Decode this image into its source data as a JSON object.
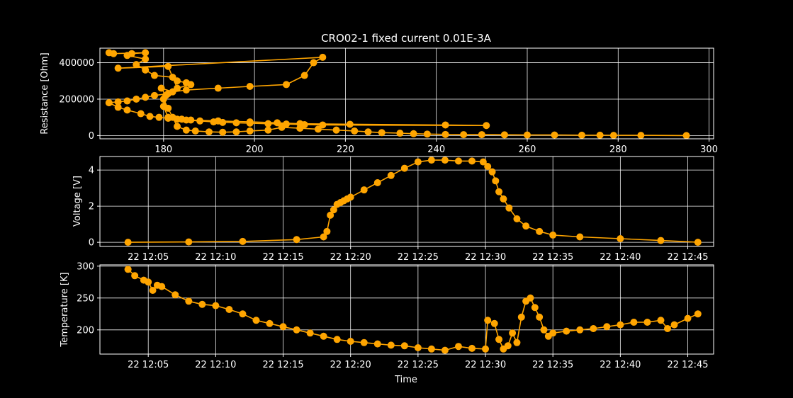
{
  "chart_data": [
    {
      "type": "line",
      "title": "CRO02-1 fixed current 0.01E-3A",
      "xlabel": "",
      "ylabel": "Resistance [Ohm]",
      "xlim": [
        166,
        301
      ],
      "ylim": [
        -18000,
        480000
      ],
      "xticks": [
        180,
        200,
        220,
        240,
        260,
        280,
        300
      ],
      "xtick_labels": [
        "180",
        "200",
        "220",
        "240",
        "260",
        "280",
        "300"
      ],
      "yticks": [
        0,
        200000,
        400000
      ],
      "ytick_labels": [
        "0",
        "200000",
        "400000"
      ],
      "grid": true,
      "color": "#ffa500",
      "series": [
        {
          "x": [
            295,
            285,
            279,
            276,
            272,
            266,
            260,
            255,
            250,
            246,
            242,
            238,
            235,
            232,
            228,
            225,
            222,
            218,
            214,
            210,
            206,
            203,
            199,
            196,
            193,
            190,
            187,
            185,
            183,
            182,
            181,
            180,
            181,
            178,
            176,
            174,
            172,
            170,
            168,
            168,
            170,
            172,
            175,
            177,
            179,
            181,
            183,
            185,
            188,
            191,
            193,
            196,
            199,
            203,
            207,
            211,
            215,
            251,
            242,
            221,
            210,
            205,
            199,
            192,
            186,
            184,
            181,
            180,
            180.5,
            179.5,
            182,
            185,
            192,
            199,
            207,
            211,
            213,
            215,
            170,
            181,
            183,
            186,
            185,
            183,
            182,
            178,
            176,
            174,
            176,
            172,
            173,
            176,
            169,
            168
          ],
          "y": [
            0,
            1000,
            1000,
            2000,
            2000,
            3000,
            3000,
            4000,
            5000,
            5000,
            6000,
            8000,
            10000,
            13000,
            16000,
            20000,
            25000,
            30000,
            35000,
            40000,
            45000,
            30000,
            25000,
            20000,
            18000,
            20000,
            25000,
            30000,
            50000,
            100000,
            150000,
            200000,
            230000,
            220000,
            210000,
            200000,
            190000,
            185000,
            180000,
            180000,
            155000,
            140000,
            120000,
            105000,
            100000,
            95000,
            90000,
            85000,
            80000,
            75000,
            72000,
            70000,
            68000,
            65000,
            63000,
            60000,
            58000,
            55000,
            58000,
            62000,
            65000,
            70000,
            75000,
            80000,
            85000,
            90000,
            100000,
            160000,
            220000,
            260000,
            240000,
            250000,
            260000,
            270000,
            280000,
            330000,
            400000,
            430000,
            370000,
            380000,
            260000,
            280000,
            290000,
            300000,
            320000,
            330000,
            360000,
            390000,
            420000,
            440000,
            450000,
            455000,
            450000,
            455000
          ]
        }
      ]
    },
    {
      "type": "line",
      "title": "",
      "xlabel": "",
      "ylabel": "Voltage [V]",
      "xlim": [
        "12:01:25",
        "12:46:55"
      ],
      "ylim": [
        -0.23,
        4.75
      ],
      "xticks": [
        "12:05:00",
        "12:10:00",
        "12:15:00",
        "12:20:00",
        "12:25:00",
        "12:30:00",
        "12:35:00",
        "12:40:00",
        "12:45:00"
      ],
      "xtick_labels": [
        "22 12:05",
        "22 12:10",
        "22 12:15",
        "22 12:20",
        "22 12:25",
        "22 12:30",
        "22 12:35",
        "22 12:40",
        "22 12:45"
      ],
      "yticks": [
        0,
        2,
        4
      ],
      "ytick_labels": [
        "0",
        "2",
        "4"
      ],
      "grid": true,
      "color": "#ffa500",
      "series": [
        {
          "x": [
            "12:03:30",
            "12:08:00",
            "12:12:00",
            "12:16:00",
            "12:18:00",
            "12:18:15",
            "12:18:30",
            "12:18:45",
            "12:19:00",
            "12:19:15",
            "12:19:30",
            "12:19:45",
            "12:20:00",
            "12:21:00",
            "12:22:00",
            "12:23:00",
            "12:24:00",
            "12:25:00",
            "12:26:00",
            "12:27:00",
            "12:28:00",
            "12:29:00",
            "12:29:50",
            "12:30:10",
            "12:30:30",
            "12:30:45",
            "12:31:00",
            "12:31:20",
            "12:31:45",
            "12:32:20",
            "12:33:00",
            "12:34:00",
            "12:35:00",
            "12:37:00",
            "12:40:00",
            "12:43:00",
            "12:45:45"
          ],
          "y": [
            0.0,
            0.02,
            0.05,
            0.15,
            0.3,
            0.6,
            1.5,
            1.8,
            2.1,
            2.2,
            2.3,
            2.4,
            2.5,
            2.9,
            3.3,
            3.7,
            4.1,
            4.45,
            4.55,
            4.55,
            4.5,
            4.5,
            4.45,
            4.2,
            3.9,
            3.4,
            2.8,
            2.4,
            1.9,
            1.3,
            0.9,
            0.6,
            0.4,
            0.3,
            0.2,
            0.1,
            0.0
          ]
        }
      ]
    },
    {
      "type": "line",
      "title": "",
      "xlabel": "Time",
      "ylabel": "Temperature [K]",
      "xlim": [
        "12:01:25",
        "12:46:55"
      ],
      "ylim": [
        162,
        302
      ],
      "xticks": [
        "12:05:00",
        "12:10:00",
        "12:15:00",
        "12:20:00",
        "12:25:00",
        "12:30:00",
        "12:35:00",
        "12:40:00",
        "12:45:00"
      ],
      "xtick_labels": [
        "22 12:05",
        "22 12:10",
        "22 12:15",
        "22 12:20",
        "22 12:25",
        "22 12:30",
        "22 12:35",
        "22 12:40",
        "22 12:45"
      ],
      "yticks": [
        200,
        250,
        300
      ],
      "ytick_labels": [
        "200",
        "250",
        "300"
      ],
      "grid": true,
      "color": "#ffa500",
      "series": [
        {
          "x": [
            "12:03:30",
            "12:04:00",
            "12:04:40",
            "12:05:00",
            "12:05:20",
            "12:05:40",
            "12:06:00",
            "12:07:00",
            "12:08:00",
            "12:09:00",
            "12:10:00",
            "12:11:00",
            "12:12:00",
            "12:13:00",
            "12:14:00",
            "12:15:00",
            "12:16:00",
            "12:17:00",
            "12:18:00",
            "12:19:00",
            "12:20:00",
            "12:21:00",
            "12:22:00",
            "12:23:00",
            "12:24:00",
            "12:25:00",
            "12:26:00",
            "12:27:00",
            "12:28:00",
            "12:29:00",
            "12:30:00",
            "12:30:10",
            "12:30:40",
            "12:31:00",
            "12:31:20",
            "12:31:40",
            "12:32:00",
            "12:32:20",
            "12:32:40",
            "12:33:00",
            "12:33:20",
            "12:33:40",
            "12:34:00",
            "12:34:20",
            "12:34:40",
            "12:35:00",
            "12:36:00",
            "12:37:00",
            "12:38:00",
            "12:39:00",
            "12:40:00",
            "12:41:00",
            "12:42:00",
            "12:43:00",
            "12:43:30",
            "12:44:00",
            "12:45:00",
            "12:45:45"
          ],
          "y": [
            295,
            285,
            278,
            275,
            262,
            270,
            268,
            255,
            245,
            240,
            238,
            232,
            225,
            215,
            210,
            205,
            200,
            195,
            190,
            185,
            182,
            180,
            178,
            176,
            175,
            172,
            170,
            168,
            174,
            171,
            170,
            215,
            210,
            185,
            170,
            175,
            195,
            180,
            220,
            245,
            250,
            235,
            220,
            200,
            190,
            195,
            198,
            200,
            202,
            205,
            208,
            212,
            212,
            215,
            202,
            208,
            218,
            225
          ]
        }
      ]
    }
  ]
}
